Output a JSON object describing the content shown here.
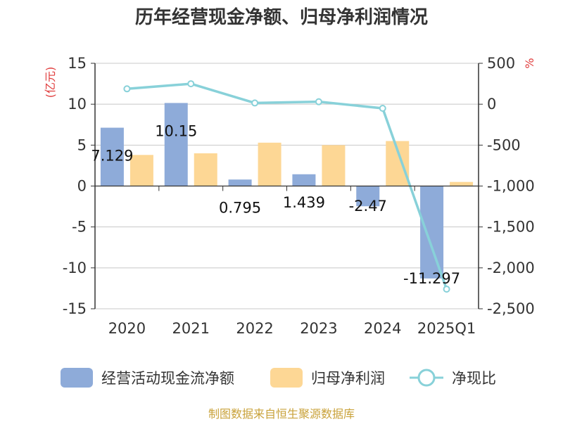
{
  "chart_data": {
    "type": "bar+line",
    "title": "历年经营现金净额、归母净利润情况",
    "categories": [
      "2020",
      "2021",
      "2022",
      "2023",
      "2024",
      "2025Q1"
    ],
    "left_axis": {
      "unit": "(亿元)",
      "min": -15,
      "max": 15,
      "ticks": [
        "15",
        "10",
        "5",
        "0",
        "-5",
        "-10",
        "-15"
      ]
    },
    "right_axis": {
      "unit": "%",
      "min": -2500,
      "max": 500,
      "ticks": [
        "500",
        "0",
        "-500",
        "-1,000",
        "-1,500",
        "-2,000",
        "-2,500"
      ]
    },
    "series": [
      {
        "name": "经营活动现金流净额",
        "type": "bar",
        "axis": "left",
        "color": "#8eabd9",
        "values": [
          7.129,
          10.15,
          0.795,
          1.439,
          -2.47,
          -11.297
        ],
        "labels": [
          "7.129",
          "10.15",
          "0.795",
          "1.439",
          "-2.47",
          "-11.297"
        ]
      },
      {
        "name": "归母净利润",
        "type": "bar",
        "axis": "left",
        "color": "#fdd795",
        "values": [
          3.8,
          4.0,
          5.3,
          5.0,
          5.5,
          0.5
        ]
      },
      {
        "name": "净现比",
        "type": "line",
        "axis": "right",
        "color": "#88d1d9",
        "values": [
          188,
          250,
          15,
          30,
          -50,
          -2260
        ]
      }
    ],
    "legend_position": "bottom",
    "grid": true
  },
  "footer": {
    "source": "制图数据来自恒生聚源数据库"
  }
}
